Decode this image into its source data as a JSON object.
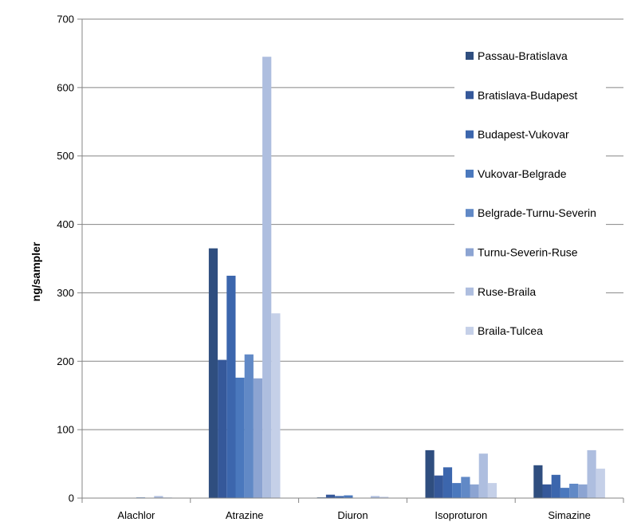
{
  "chart_data": {
    "type": "bar",
    "title": "",
    "xlabel": "",
    "ylabel": "ng/sampler",
    "ylim": [
      0,
      700
    ],
    "yticks": [
      0,
      100,
      200,
      300,
      400,
      500,
      600,
      700
    ],
    "grid": true,
    "legend_position": "top-right",
    "categories": [
      "Alachlor",
      "Atrazine",
      "Diuron",
      "Isoproturon",
      "Simazine"
    ],
    "series": [
      {
        "name": "Passau-Bratislava",
        "color": "#2f4e7f",
        "values": [
          0,
          365,
          1,
          70,
          48
        ]
      },
      {
        "name": "Bratislava-Budapest",
        "color": "#35589a",
        "values": [
          0,
          202,
          5,
          33,
          20
        ]
      },
      {
        "name": "Budapest-Vukovar",
        "color": "#3c66ad",
        "values": [
          0,
          325,
          3,
          45,
          34
        ]
      },
      {
        "name": "Vukovar-Belgrade",
        "color": "#4a78bd",
        "values": [
          0,
          176,
          4,
          22,
          15
        ]
      },
      {
        "name": "Belgrade-Turnu-Severin",
        "color": "#6189c6",
        "values": [
          1,
          210,
          0,
          31,
          21
        ]
      },
      {
        "name": "Turnu-Severin-Ruse",
        "color": "#8ca4d2",
        "values": [
          0,
          175,
          0,
          20,
          20
        ]
      },
      {
        "name": "Ruse-Braila",
        "color": "#aebedf",
        "values": [
          3,
          645,
          3,
          65,
          70
        ]
      },
      {
        "name": "Braila-Tulcea",
        "color": "#c5d0e8",
        "values": [
          1,
          270,
          2,
          22,
          43
        ]
      }
    ]
  }
}
